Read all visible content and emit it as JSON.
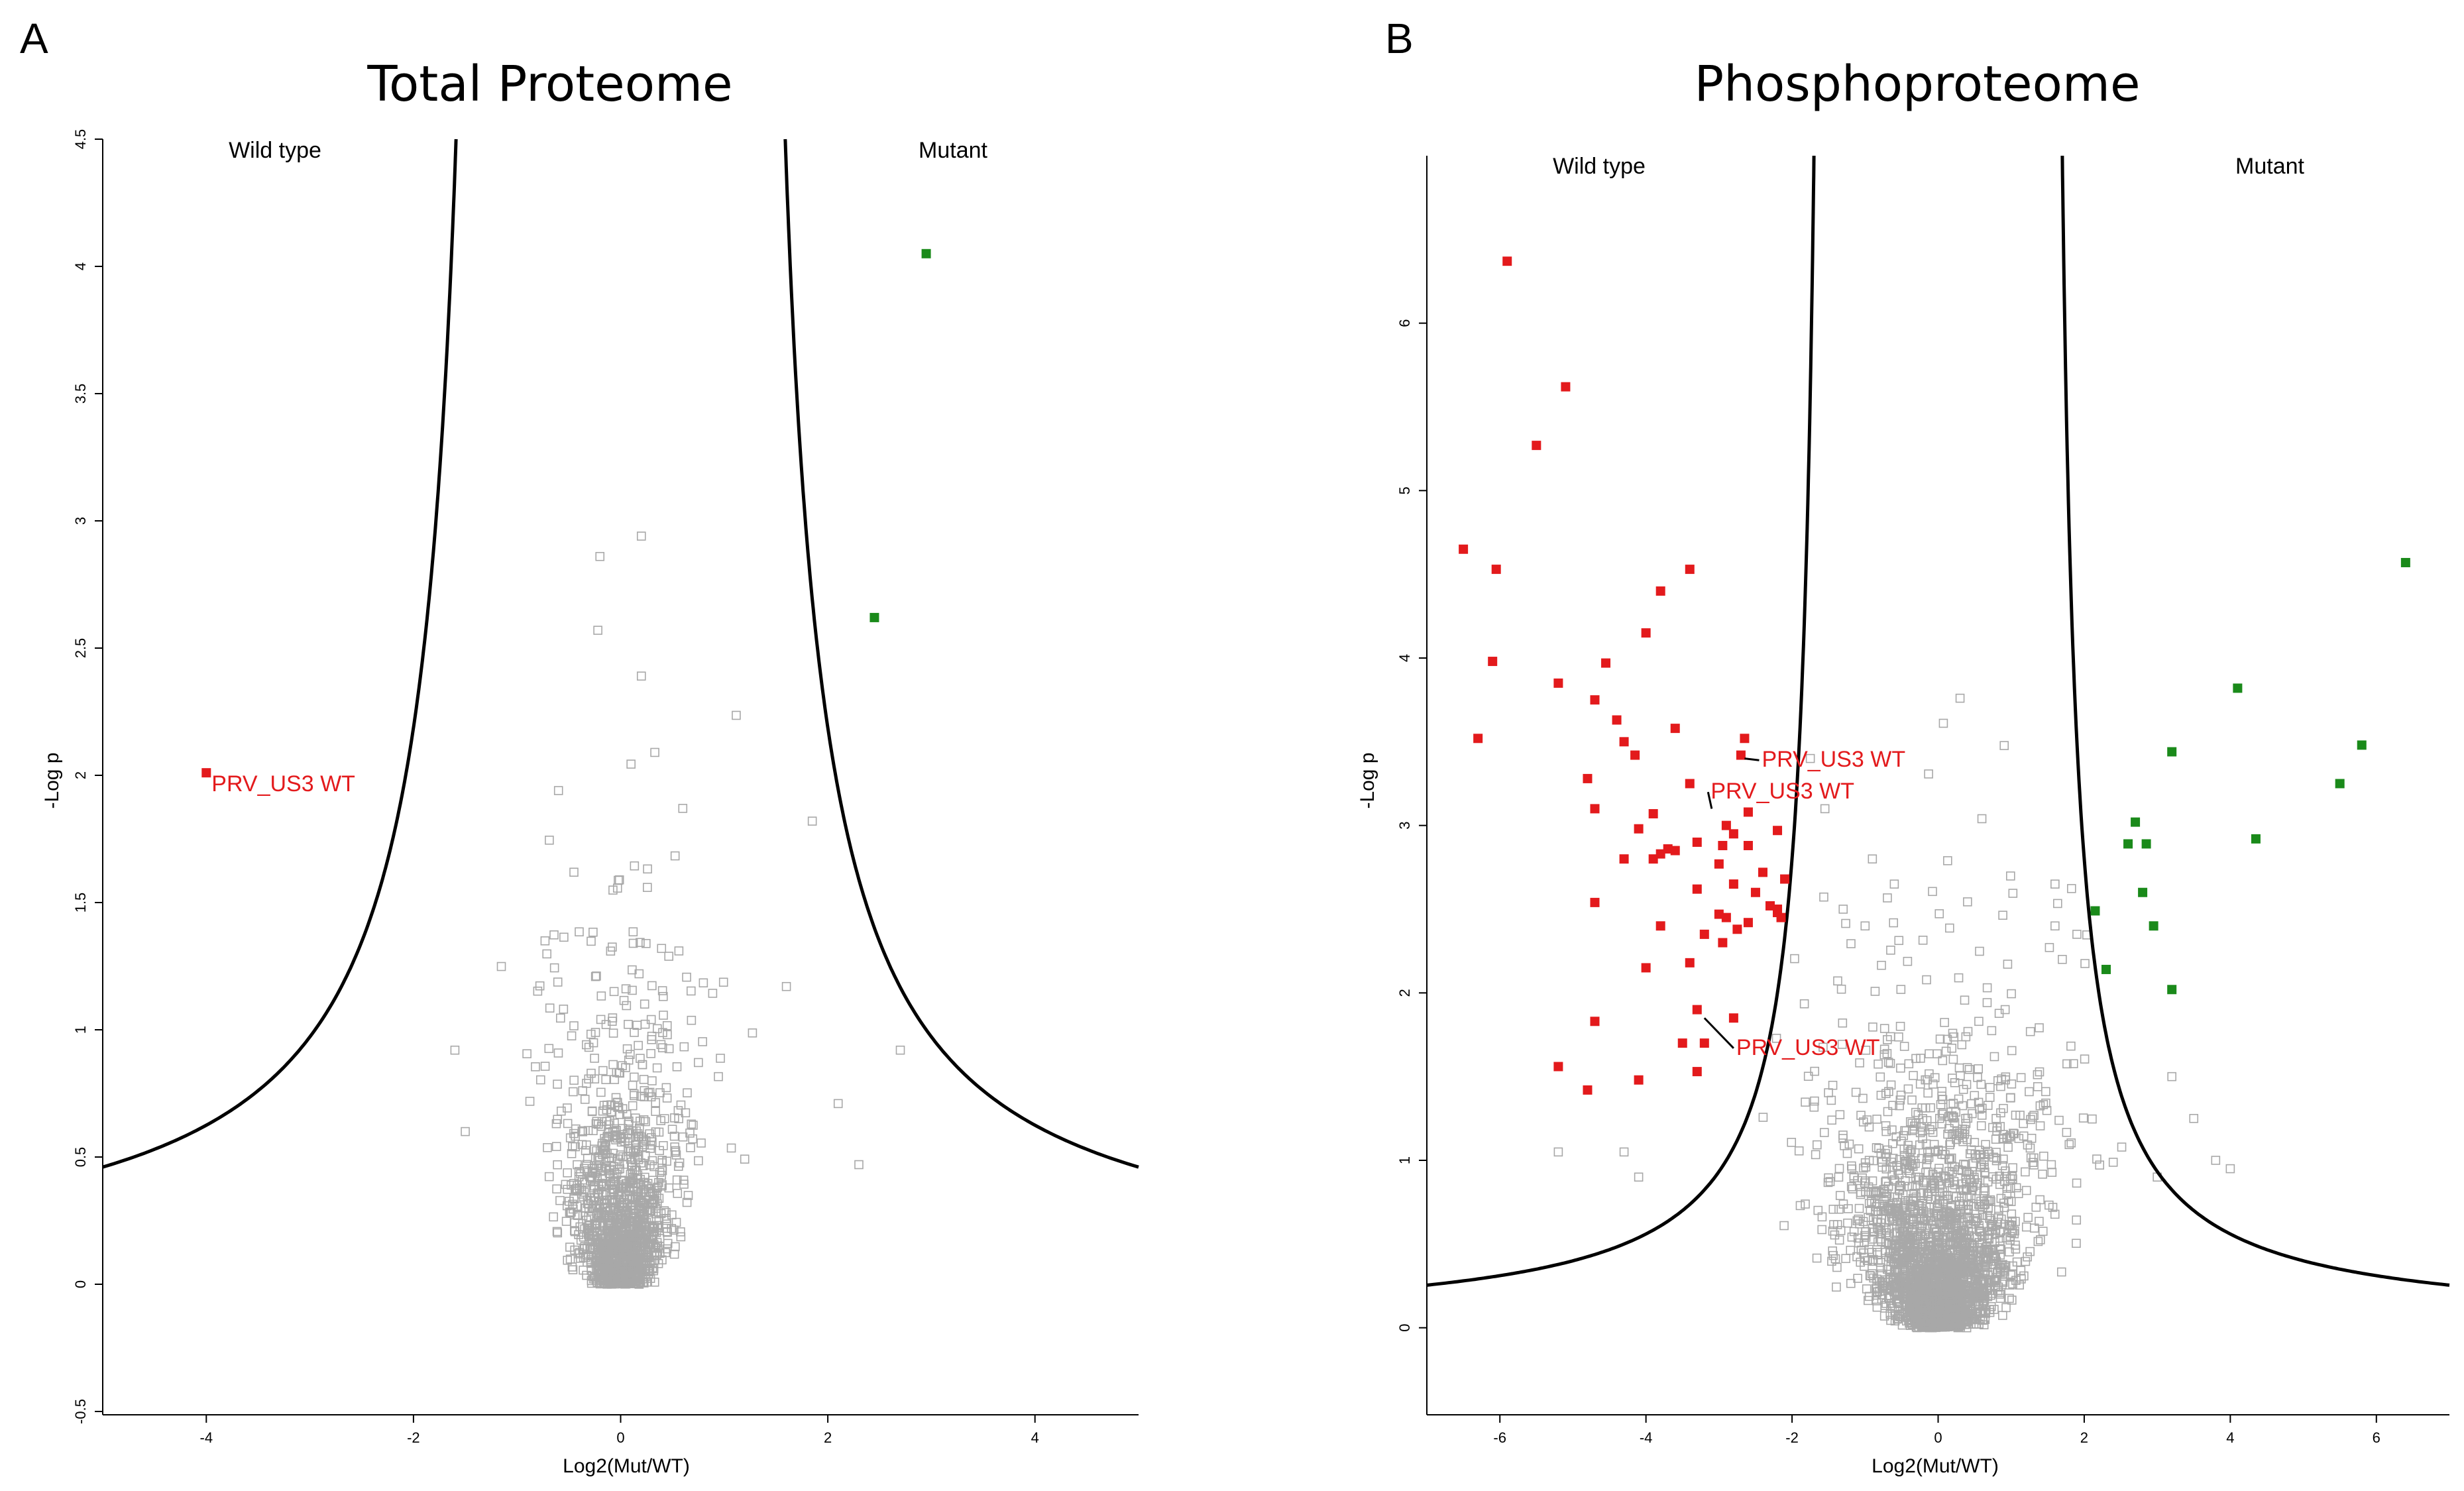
{
  "chart_data": [
    {
      "panel": "A",
      "type": "scatter",
      "title": "Total Proteome",
      "xlabel": "Log2(Mut/WT)",
      "ylabel": "-Log p",
      "xlim": [
        -5,
        5
      ],
      "ylim": [
        -0.5,
        4.5
      ],
      "xticks": [
        -4,
        -2,
        0,
        2,
        4
      ],
      "yticks": [
        -0.5,
        0,
        0.5,
        1,
        1.5,
        2,
        2.5,
        3,
        3.5,
        4,
        4.5
      ],
      "group_labels": {
        "left": "Wild type",
        "right": "Mutant"
      },
      "threshold": {
        "s0": 1.2,
        "c": 1.75
      },
      "colors": {
        "down": "#e31a1c",
        "up": "#1a8a1a",
        "ns": "#a8a8a8",
        "curve": "#000000"
      },
      "significant_down": [
        {
          "x": -4.0,
          "y": 2.01,
          "label": "PRV_US3 WT"
        }
      ],
      "significant_up": [
        {
          "x": 2.95,
          "y": 4.05
        },
        {
          "x": 2.45,
          "y": 2.62
        }
      ],
      "notable_nonsignificant": [
        [
          0.2,
          2.94
        ],
        [
          -0.2,
          2.86
        ],
        [
          -0.22,
          2.57
        ],
        [
          0.2,
          2.39
        ],
        [
          0.33,
          2.09
        ],
        [
          -0.6,
          1.94
        ],
        [
          0.6,
          1.87
        ],
        [
          1.85,
          1.82
        ],
        [
          1.6,
          1.17
        ],
        [
          2.7,
          0.92
        ],
        [
          2.1,
          0.71
        ],
        [
          2.3,
          0.47
        ],
        [
          -1.6,
          0.92
        ],
        [
          -1.5,
          0.6
        ]
      ],
      "nonsignificant_cloud": {
        "count": 1400,
        "seed": 7,
        "x_spread": 0.42,
        "y_scale": 0.33
      }
    },
    {
      "panel": "B",
      "type": "scatter",
      "title": "Phosphoproteome",
      "xlabel": "Log2(Mut/WT)",
      "ylabel": "-Log p",
      "xlim": [
        -7,
        7
      ],
      "ylim": [
        -0.5,
        7
      ],
      "xticks": [
        -6,
        -4,
        -2,
        0,
        2,
        4,
        6
      ],
      "yticks": [
        0,
        1,
        2,
        3,
        4,
        5,
        6
      ],
      "group_labels": {
        "left": "Wild type",
        "right": "Mutant"
      },
      "threshold": {
        "s0": 1.5,
        "c": 1.4
      },
      "colors": {
        "down": "#e31a1c",
        "up": "#1a8a1a",
        "ns": "#a8a8a8",
        "curve": "#000000"
      },
      "annotations": [
        {
          "label": "PRV_US3 WT",
          "x": -2.65,
          "y": 3.4,
          "label_x": -2.45,
          "label_y": 3.35
        },
        {
          "label": "PRV_US3 WT",
          "x": -3.1,
          "y": 3.1,
          "label_x": -3.15,
          "label_y": 3.16
        },
        {
          "label": "PRV_US3 WT",
          "x": -3.2,
          "y": 1.85,
          "label_x": -2.8,
          "label_y": 1.63
        }
      ],
      "significant_down": [
        [
          -5.9,
          6.37
        ],
        [
          -5.1,
          5.62
        ],
        [
          -5.5,
          5.27
        ],
        [
          -6.5,
          4.65
        ],
        [
          -6.05,
          4.53
        ],
        [
          -3.4,
          4.53
        ],
        [
          -3.8,
          4.4
        ],
        [
          -6.1,
          3.98
        ],
        [
          -4.55,
          3.97
        ],
        [
          -5.2,
          3.85
        ],
        [
          -4.0,
          4.15
        ],
        [
          -4.7,
          3.75
        ],
        [
          -4.4,
          3.63
        ],
        [
          -4.3,
          3.5
        ],
        [
          -6.3,
          3.52
        ],
        [
          -3.6,
          3.58
        ],
        [
          -4.15,
          3.42
        ],
        [
          -2.65,
          3.52
        ],
        [
          -2.7,
          3.42
        ],
        [
          -4.8,
          3.28
        ],
        [
          -3.4,
          3.25
        ],
        [
          -4.7,
          3.1
        ],
        [
          -3.9,
          3.07
        ],
        [
          -2.6,
          3.08
        ],
        [
          -4.1,
          2.98
        ],
        [
          -2.9,
          3.0
        ],
        [
          -2.8,
          2.95
        ],
        [
          -2.2,
          2.97
        ],
        [
          -3.3,
          2.9
        ],
        [
          -2.95,
          2.88
        ],
        [
          -3.9,
          2.8
        ],
        [
          -3.8,
          2.83
        ],
        [
          -3.6,
          2.85
        ],
        [
          -3.7,
          2.86
        ],
        [
          -4.3,
          2.8
        ],
        [
          -2.6,
          2.88
        ],
        [
          -3.0,
          2.77
        ],
        [
          -2.4,
          2.72
        ],
        [
          -2.8,
          2.65
        ],
        [
          -3.3,
          2.62
        ],
        [
          -2.1,
          2.68
        ],
        [
          -2.5,
          2.6
        ],
        [
          -4.7,
          2.54
        ],
        [
          -2.3,
          2.52
        ],
        [
          -2.9,
          2.45
        ],
        [
          -3.0,
          2.47
        ],
        [
          -2.2,
          2.48
        ],
        [
          -2.6,
          2.42
        ],
        [
          -2.75,
          2.38
        ],
        [
          -3.8,
          2.4
        ],
        [
          -3.2,
          2.35
        ],
        [
          -2.95,
          2.3
        ],
        [
          -4.0,
          2.15
        ],
        [
          -3.4,
          2.18
        ],
        [
          -2.2,
          2.5
        ],
        [
          -2.15,
          2.45
        ],
        [
          -3.3,
          1.9
        ],
        [
          -4.7,
          1.83
        ],
        [
          -2.8,
          1.85
        ],
        [
          -3.2,
          1.7
        ],
        [
          -3.5,
          1.7
        ],
        [
          -5.2,
          1.56
        ],
        [
          -3.3,
          1.53
        ],
        [
          -4.1,
          1.48
        ],
        [
          -4.8,
          1.42
        ]
      ],
      "significant_up": [
        [
          6.4,
          4.57
        ],
        [
          4.1,
          3.82
        ],
        [
          5.8,
          3.48
        ],
        [
          3.2,
          3.44
        ],
        [
          5.5,
          3.25
        ],
        [
          2.7,
          3.02
        ],
        [
          4.35,
          2.92
        ],
        [
          2.6,
          2.89
        ],
        [
          2.85,
          2.89
        ],
        [
          2.8,
          2.6
        ],
        [
          2.15,
          2.49
        ],
        [
          2.95,
          2.4
        ],
        [
          2.3,
          2.14
        ],
        [
          3.2,
          2.02
        ]
      ],
      "notable_nonsignificant": [
        [
          0.3,
          3.76
        ],
        [
          -1.75,
          3.4
        ],
        [
          -1.55,
          3.1
        ],
        [
          -0.9,
          2.8
        ],
        [
          -0.6,
          2.65
        ],
        [
          1.6,
          2.65
        ],
        [
          -1.3,
          2.5
        ],
        [
          -1.0,
          2.4
        ],
        [
          1.6,
          2.4
        ],
        [
          1.9,
          2.35
        ],
        [
          1.7,
          2.2
        ],
        [
          -5.2,
          1.05
        ],
        [
          -4.3,
          1.05
        ],
        [
          -4.1,
          0.9
        ],
        [
          3.2,
          1.5
        ],
        [
          3.5,
          1.25
        ],
        [
          3.8,
          1.0
        ],
        [
          4.0,
          0.95
        ],
        [
          3.0,
          0.9
        ]
      ],
      "nonsignificant_cloud": {
        "count": 2600,
        "seed": 13,
        "x_spread": 0.78,
        "y_scale": 0.5
      }
    }
  ],
  "panels": {
    "a": {
      "letter": "A",
      "title": "Total Proteome",
      "xlabel": "Log2(Mut/WT)",
      "ylabel": "-Log p",
      "left_group": "Wild type",
      "right_group": "Mutant",
      "annotation": "PRV_US3 WT"
    },
    "b": {
      "letter": "B",
      "title": "Phosphoproteome",
      "xlabel": "Log2(Mut/WT)",
      "ylabel": "-Log p",
      "left_group": "Wild type",
      "right_group": "Mutant"
    }
  }
}
